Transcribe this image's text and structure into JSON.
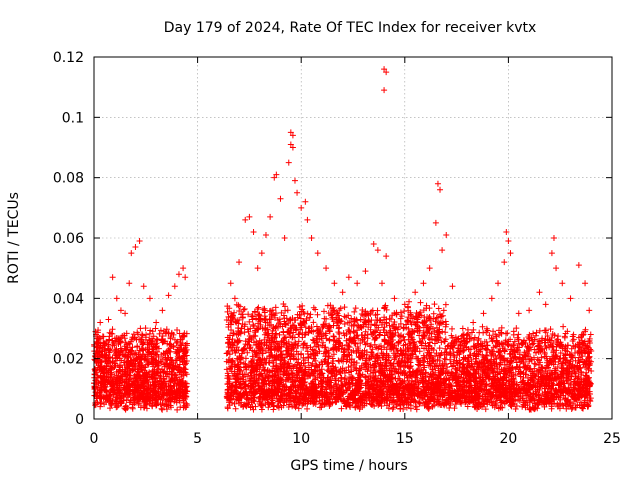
{
  "chart_data": {
    "type": "scatter",
    "title": "Day 179 of 2024, Rate Of TEC Index for receiver kvtx",
    "xlabel": "GPS time / hours",
    "ylabel": "ROTI / TECUs",
    "xlim": [
      0,
      25
    ],
    "ylim": [
      0,
      0.12
    ],
    "xticks": [
      0,
      5,
      10,
      15,
      20,
      25
    ],
    "xtick_labels": [
      "0",
      "5",
      "10",
      "15",
      "20",
      "25"
    ],
    "yticks": [
      0,
      0.02,
      0.04,
      0.06,
      0.08,
      0.1,
      0.12
    ],
    "ytick_labels": [
      "0",
      "0.02",
      "0.04",
      "0.06",
      "0.08",
      "0.1",
      "0.12"
    ],
    "grid": true,
    "marker": "plus",
    "color": "#ff0000",
    "series": [
      {
        "points": [
          [
            0.1,
            0.028
          ],
          [
            0.3,
            0.032
          ],
          [
            0.5,
            0.025
          ],
          [
            0.7,
            0.033
          ],
          [
            0.9,
            0.047
          ],
          [
            1.1,
            0.04
          ],
          [
            1.3,
            0.036
          ],
          [
            1.5,
            0.035
          ],
          [
            1.7,
            0.045
          ],
          [
            1.8,
            0.055
          ],
          [
            2.0,
            0.057
          ],
          [
            2.2,
            0.059
          ],
          [
            2.4,
            0.044
          ],
          [
            2.7,
            0.04
          ],
          [
            3.0,
            0.032
          ],
          [
            3.3,
            0.036
          ],
          [
            3.6,
            0.041
          ],
          [
            3.9,
            0.044
          ],
          [
            4.1,
            0.048
          ],
          [
            4.3,
            0.05
          ],
          [
            4.4,
            0.047
          ],
          [
            6.6,
            0.045
          ],
          [
            6.8,
            0.04
          ],
          [
            7.0,
            0.052
          ],
          [
            7.3,
            0.066
          ],
          [
            7.5,
            0.067
          ],
          [
            7.7,
            0.062
          ],
          [
            7.9,
            0.05
          ],
          [
            8.1,
            0.055
          ],
          [
            8.3,
            0.061
          ],
          [
            8.5,
            0.067
          ],
          [
            8.7,
            0.08
          ],
          [
            8.8,
            0.081
          ],
          [
            9.0,
            0.073
          ],
          [
            9.2,
            0.06
          ],
          [
            9.4,
            0.085
          ],
          [
            9.5,
            0.095
          ],
          [
            9.6,
            0.094
          ],
          [
            9.5,
            0.091
          ],
          [
            9.6,
            0.09
          ],
          [
            9.7,
            0.079
          ],
          [
            9.8,
            0.075
          ],
          [
            10.0,
            0.07
          ],
          [
            10.2,
            0.072
          ],
          [
            10.3,
            0.066
          ],
          [
            10.5,
            0.06
          ],
          [
            10.8,
            0.055
          ],
          [
            11.2,
            0.05
          ],
          [
            11.6,
            0.045
          ],
          [
            12.0,
            0.042
          ],
          [
            12.3,
            0.047
          ],
          [
            12.7,
            0.045
          ],
          [
            13.1,
            0.049
          ],
          [
            13.5,
            0.058
          ],
          [
            13.7,
            0.056
          ],
          [
            13.9,
            0.045
          ],
          [
            14.0,
            0.116
          ],
          [
            14.1,
            0.115
          ],
          [
            14.0,
            0.109
          ],
          [
            14.1,
            0.054
          ],
          [
            14.5,
            0.04
          ],
          [
            15.0,
            0.038
          ],
          [
            15.5,
            0.042
          ],
          [
            15.9,
            0.045
          ],
          [
            16.2,
            0.05
          ],
          [
            16.5,
            0.065
          ],
          [
            16.6,
            0.078
          ],
          [
            16.7,
            0.076
          ],
          [
            16.8,
            0.056
          ],
          [
            17.0,
            0.061
          ],
          [
            17.3,
            0.044
          ],
          [
            17.8,
            0.03
          ],
          [
            18.3,
            0.032
          ],
          [
            18.8,
            0.035
          ],
          [
            19.2,
            0.04
          ],
          [
            19.5,
            0.045
          ],
          [
            19.8,
            0.052
          ],
          [
            19.9,
            0.062
          ],
          [
            20.0,
            0.059
          ],
          [
            20.1,
            0.055
          ],
          [
            20.5,
            0.035
          ],
          [
            21.0,
            0.036
          ],
          [
            21.5,
            0.042
          ],
          [
            21.8,
            0.038
          ],
          [
            22.1,
            0.055
          ],
          [
            22.2,
            0.06
          ],
          [
            22.3,
            0.05
          ],
          [
            22.6,
            0.045
          ],
          [
            23.0,
            0.04
          ],
          [
            23.4,
            0.051
          ],
          [
            23.7,
            0.045
          ],
          [
            23.9,
            0.036
          ]
        ]
      }
    ]
  }
}
